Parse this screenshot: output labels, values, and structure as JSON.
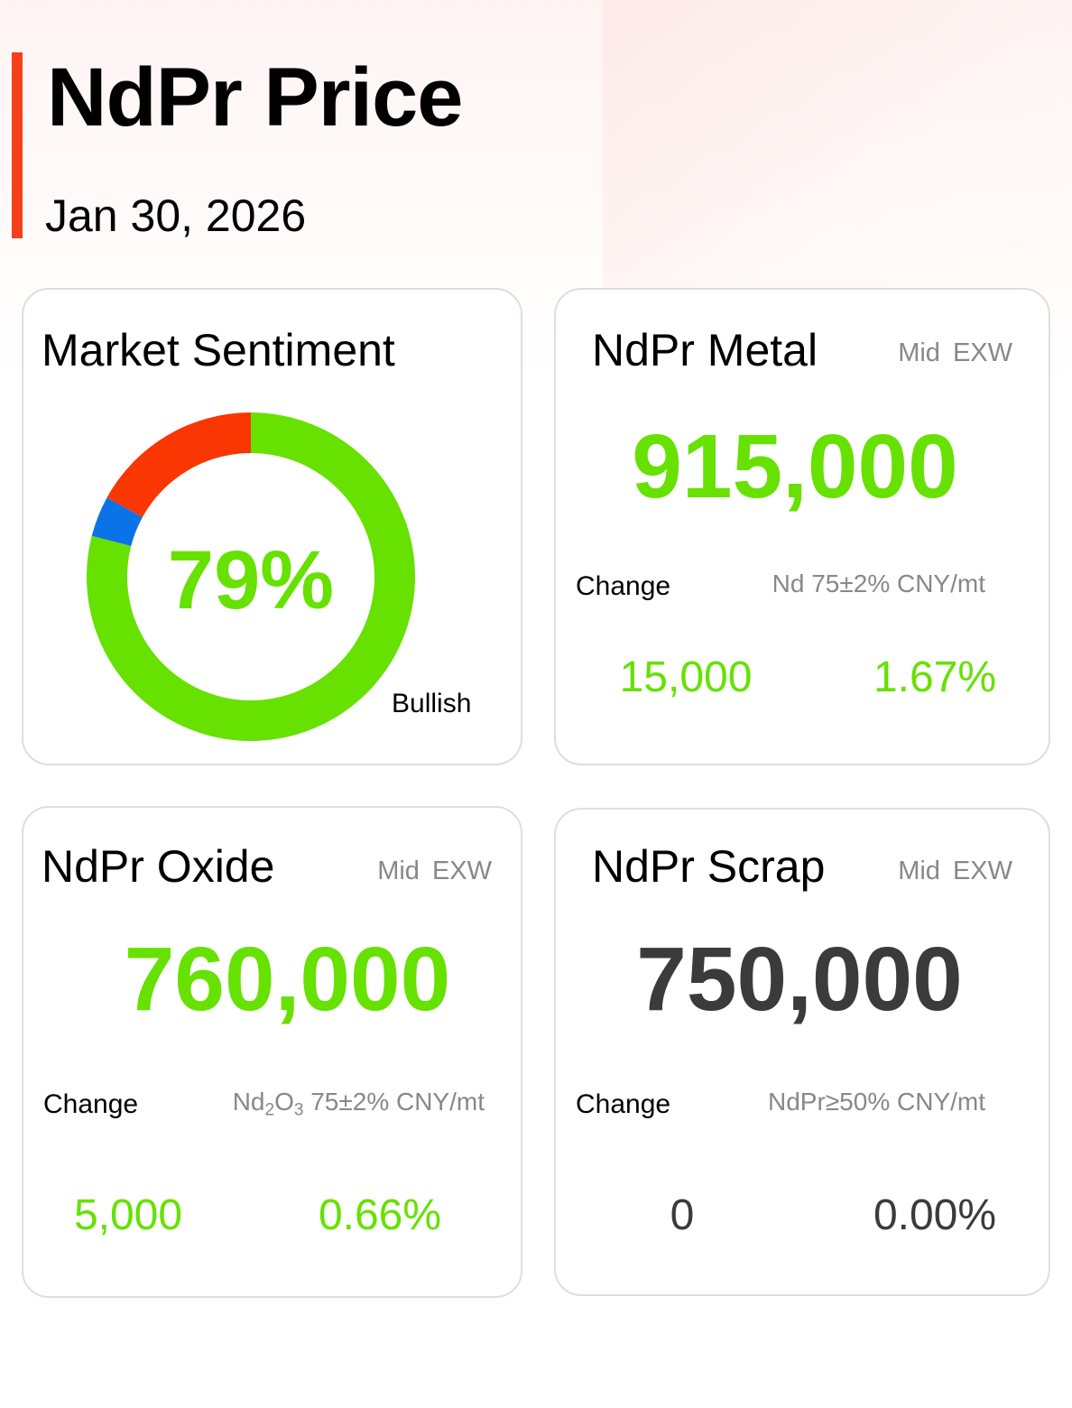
{
  "header": {
    "title": "NdPr Price",
    "date": "Jan 30, 2026"
  },
  "colors": {
    "accent": "#f5401d",
    "up": "#66e100",
    "neutral": "#3b3b3b",
    "bearish": "#fa3602",
    "neutral_segment": "#0b73e8"
  },
  "sentiment": {
    "title": "Market Sentiment",
    "value_label": "79%",
    "caption": "Bullish",
    "chart_data": {
      "type": "pie",
      "categories": [
        "Bullish",
        "Neutral",
        "Bearish"
      ],
      "values": [
        79,
        4,
        17
      ],
      "colors": [
        "#66e100",
        "#0b73e8",
        "#fa3602"
      ]
    }
  },
  "metal": {
    "title": "NdPr Metal",
    "meta_mid": "Mid",
    "meta_exw": "EXW",
    "price": "915,000",
    "change_label": "Change",
    "spec": "Nd 75±2% CNY/mt",
    "change_abs": "15,000",
    "change_pct": "1.67%"
  },
  "oxide": {
    "title": "NdPr Oxide",
    "meta_mid": "Mid",
    "meta_exw": "EXW",
    "price": "760,000",
    "change_label": "Change",
    "spec_base": "Nd",
    "spec_sub1": "2",
    "spec_mid": "O",
    "spec_sub2": "3",
    "spec_rest": " 75±2% CNY/mt",
    "change_abs": "5,000",
    "change_pct": "0.66%"
  },
  "scrap": {
    "title": "NdPr Scrap",
    "meta_mid": "Mid",
    "meta_exw": "EXW",
    "price": "750,000",
    "change_label": "Change",
    "spec": "NdPr≥50% CNY/mt",
    "change_abs": "0",
    "change_pct": "0.00%"
  }
}
